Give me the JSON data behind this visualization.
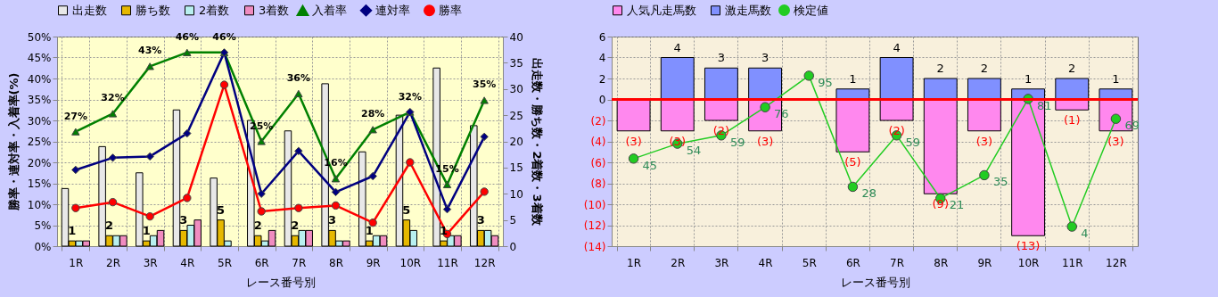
{
  "chart_data": [
    {
      "type": "bar",
      "categories": [
        "1R",
        "2R",
        "3R",
        "4R",
        "5R",
        "6R",
        "7R",
        "8R",
        "9R",
        "10R",
        "11R",
        "12R"
      ],
      "xlabel": "レース番号別",
      "ylabel": "勝率・連対率・入着率(%)",
      "y2label": "出走数・勝ち数・2着数・3着数",
      "ylim": [
        0,
        50
      ],
      "yticks": [
        {
          "value": 0,
          "label": "0%"
        },
        {
          "value": 5,
          "label": "5%"
        },
        {
          "value": 10,
          "label": "10%"
        },
        {
          "value": 15,
          "label": "15%"
        },
        {
          "value": 20,
          "label": "20%"
        },
        {
          "value": 25,
          "label": "25%"
        },
        {
          "value": 30,
          "label": "30%"
        },
        {
          "value": 35,
          "label": "35%"
        },
        {
          "value": 40,
          "label": "40%"
        },
        {
          "value": 45,
          "label": "45%"
        },
        {
          "value": 50,
          "label": "50%"
        }
      ],
      "y2lim": [
        0,
        40
      ],
      "y2ticks": [
        0,
        5,
        10,
        15,
        20,
        25,
        30,
        35,
        40
      ],
      "grid": true,
      "legend": "top",
      "series": [
        {
          "name": "出走数",
          "color": "#e8e8e8",
          "axis": "y2",
          "values": [
            11,
            19,
            14,
            26,
            13,
            24,
            22,
            31,
            18,
            25,
            34,
            23
          ]
        },
        {
          "name": "勝ち数",
          "color": "#e6b800",
          "axis": "y2",
          "values": [
            1,
            2,
            1,
            3,
            5,
            2,
            2,
            3,
            1,
            5,
            1,
            3
          ],
          "value_labels": [
            "1",
            "2",
            "1",
            "3",
            "5",
            "2",
            "2",
            "3",
            "1",
            "5",
            "1",
            "3"
          ]
        },
        {
          "name": "2着数",
          "color": "#b8f0f0",
          "axis": "y2",
          "values": [
            1,
            2,
            2,
            4,
            1,
            1,
            3,
            1,
            2,
            3,
            2,
            3
          ]
        },
        {
          "name": "3着数",
          "color": "#f08cc0",
          "axis": "y2",
          "values": [
            1,
            2,
            3,
            5,
            0,
            3,
            3,
            1,
            2,
            0,
            2,
            2
          ]
        },
        {
          "name": "入着率",
          "type": "line",
          "color": "#008000",
          "marker": "triangle",
          "values": [
            27.3,
            31.6,
            42.9,
            46.2,
            46.2,
            25,
            36.4,
            16.1,
            27.8,
            32,
            14.7,
            34.8
          ],
          "value_labels": [
            "27%",
            "32%",
            "43%",
            "46%",
            "46%",
            "25%",
            "36%",
            "16%",
            "28%",
            "32%",
            "15%",
            "35%"
          ]
        },
        {
          "name": "連対率",
          "type": "line",
          "color": "#000080",
          "marker": "diamond",
          "values": [
            18.2,
            21.1,
            21.4,
            26.9,
            46.2,
            12.5,
            22.7,
            12.9,
            16.7,
            32,
            8.8,
            26.1
          ]
        },
        {
          "name": "勝率",
          "type": "line",
          "color": "#ff0000",
          "marker": "circle",
          "values": [
            9.1,
            10.5,
            7.1,
            11.5,
            38.5,
            8.3,
            9.1,
            9.7,
            5.6,
            20,
            2.9,
            13
          ]
        }
      ]
    },
    {
      "type": "bar",
      "stacked": true,
      "categories": [
        "1R",
        "2R",
        "3R",
        "4R",
        "5R",
        "6R",
        "7R",
        "8R",
        "9R",
        "10R",
        "11R",
        "12R"
      ],
      "xlabel": "レース番号別",
      "ylim": [
        -14,
        6
      ],
      "yticks": [
        {
          "value": -14,
          "label": "(14)"
        },
        {
          "value": -12,
          "label": "(12)"
        },
        {
          "value": -10,
          "label": "(10)"
        },
        {
          "value": -8,
          "label": "(8)"
        },
        {
          "value": -6,
          "label": "(6)"
        },
        {
          "value": -4,
          "label": "(4)"
        },
        {
          "value": -2,
          "label": "(2)"
        },
        0,
        2,
        4,
        6
      ],
      "y2lim": [
        -7.8,
        118.6
      ],
      "tick_labels": "xy",
      "grid": true,
      "legend": "top",
      "ref_lines": [
        {
          "axis": "y",
          "value": 0,
          "color": "#ff0000"
        }
      ],
      "series": [
        {
          "name": "人気凡走馬数",
          "color": "#ff88ee",
          "values": [
            -3,
            -3,
            -2,
            -3,
            0,
            -5,
            -2,
            -9,
            -3,
            -13,
            -1,
            -3
          ],
          "value_labels": [
            "(3)",
            "(3)",
            "(2)",
            "(3)",
            null,
            "(5)",
            "(2)",
            "(9)",
            "(3)",
            "(13)",
            "(1)",
            "(3)"
          ]
        },
        {
          "name": "激走馬数",
          "color": "#8090ff",
          "values": [
            0,
            4,
            3,
            3,
            0,
            1,
            4,
            2,
            2,
            1,
            2,
            1
          ],
          "value_labels": [
            null,
            "4",
            "3",
            "3",
            null,
            "1",
            "4",
            "2",
            "2",
            "1",
            "2",
            "1"
          ]
        },
        {
          "name": "検定値",
          "type": "line",
          "axis": "y2",
          "color": "#22cc22",
          "marker": "circle",
          "values": [
            45,
            54,
            59,
            76,
            95,
            28,
            59,
            21,
            35,
            81,
            4,
            69
          ],
          "value_labels": [
            "45",
            "54",
            "59",
            "76",
            "95",
            "28",
            "59",
            "21",
            "35",
            "81",
            "4",
            "69"
          ]
        }
      ]
    }
  ]
}
